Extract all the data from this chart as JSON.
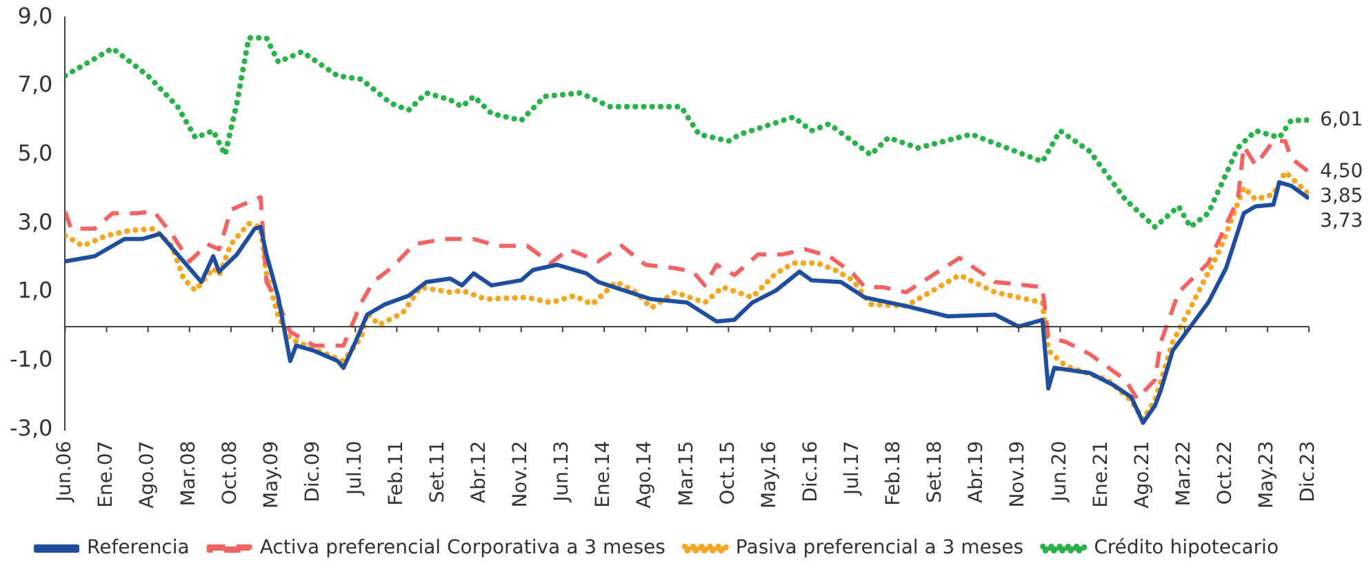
{
  "chart_data": {
    "type": "line",
    "legend": "bottom",
    "xlim": [
      "2006-06",
      "2023-12"
    ],
    "xticks": [
      {
        "value": "2006-06",
        "label": "Jun.06"
      },
      {
        "value": "2007-01",
        "label": "Ene.07"
      },
      {
        "value": "2007-08",
        "label": "Ago.07"
      },
      {
        "value": "2008-03",
        "label": "Mar.08"
      },
      {
        "value": "2008-10",
        "label": "Oct.08"
      },
      {
        "value": "2009-05",
        "label": "May.09"
      },
      {
        "value": "2009-12",
        "label": "Dic.09"
      },
      {
        "value": "2010-07",
        "label": "Jul.10"
      },
      {
        "value": "2011-02",
        "label": "Feb.11"
      },
      {
        "value": "2011-09",
        "label": "Set.11"
      },
      {
        "value": "2012-04",
        "label": "Abr.12"
      },
      {
        "value": "2012-11",
        "label": "Nov.12"
      },
      {
        "value": "2013-06",
        "label": "Jun.13"
      },
      {
        "value": "2014-01",
        "label": "Ene.14"
      },
      {
        "value": "2014-08",
        "label": "Ago.14"
      },
      {
        "value": "2015-03",
        "label": "Mar.15"
      },
      {
        "value": "2015-10",
        "label": "Oct.15"
      },
      {
        "value": "2016-05",
        "label": "May.16"
      },
      {
        "value": "2016-12",
        "label": "Dic.16"
      },
      {
        "value": "2017-07",
        "label": "Jul.17"
      },
      {
        "value": "2018-02",
        "label": "Feb.18"
      },
      {
        "value": "2018-09",
        "label": "Set.18"
      },
      {
        "value": "2019-04",
        "label": "Abr.19"
      },
      {
        "value": "2019-11",
        "label": "Nov.19"
      },
      {
        "value": "2020-06",
        "label": "Jun.20"
      },
      {
        "value": "2021-01",
        "label": "Ene.21"
      },
      {
        "value": "2021-08",
        "label": "Ago.21"
      },
      {
        "value": "2022-03",
        "label": "Mar.22"
      },
      {
        "value": "2022-10",
        "label": "Oct.22"
      },
      {
        "value": "2023-05",
        "label": "May.23"
      },
      {
        "value": "2023-12",
        "label": "Dic.23"
      }
    ],
    "ylim": [
      -3,
      9
    ],
    "yticks": [
      {
        "value": -3,
        "label": "-3,0"
      },
      {
        "value": -1,
        "label": "-1,0"
      },
      {
        "value": 1,
        "label": "1,0"
      },
      {
        "value": 3,
        "label": "3,0"
      },
      {
        "value": 5,
        "label": "5,0"
      },
      {
        "value": 7,
        "label": "7,0"
      },
      {
        "value": 9,
        "label": "9,0"
      }
    ],
    "ref_lines": [
      {
        "axis": "y",
        "value": 0,
        "color": "#404040"
      }
    ],
    "annotations": [
      {
        "text": "6,01",
        "x": "2023-12",
        "y": 6.01
      },
      {
        "text": "4,50",
        "x": "2023-12",
        "y": 4.5
      },
      {
        "text": "3,85",
        "x": "2023-12",
        "y": 3.85
      },
      {
        "text": "3,73",
        "x": "2023-12",
        "y": 3.73
      }
    ],
    "series": [
      {
        "name": "Referencia",
        "color": "#1f4e9c",
        "line_style": "solid",
        "x": [
          "2006-06",
          "2006-11",
          "2007-04",
          "2007-07",
          "2007-10",
          "2008-01",
          "2008-04",
          "2008-05",
          "2008-07",
          "2008-08",
          "2008-11",
          "2009-02",
          "2009-03",
          "2009-04",
          "2009-06",
          "2009-08",
          "2009-09",
          "2009-12",
          "2010-04",
          "2010-05",
          "2010-07",
          "2010-09",
          "2010-12",
          "2011-04",
          "2011-07",
          "2011-11",
          "2012-01",
          "2012-03",
          "2012-06",
          "2012-11",
          "2013-01",
          "2013-05",
          "2013-10",
          "2013-12",
          "2014-08",
          "2014-09",
          "2015-03",
          "2015-08",
          "2015-11",
          "2016-02",
          "2016-06",
          "2016-10",
          "2016-12",
          "2017-05",
          "2017-09",
          "2018-04",
          "2018-11",
          "2019-07",
          "2019-11",
          "2020-03",
          "2020-04",
          "2020-05",
          "2020-11",
          "2021-03",
          "2021-06",
          "2021-08",
          "2021-10",
          "2021-11",
          "2022-01",
          "2022-04",
          "2022-07",
          "2022-10",
          "2023-01",
          "2023-03",
          "2023-06",
          "2023-07",
          "2023-09",
          "2023-12"
        ],
        "values": [
          1.9,
          2.05,
          2.55,
          2.55,
          2.7,
          2.1,
          1.5,
          1.3,
          2.05,
          1.6,
          2.1,
          2.85,
          2.9,
          2.1,
          0.85,
          -1.0,
          -0.55,
          -0.7,
          -1.0,
          -1.2,
          -0.45,
          0.35,
          0.65,
          0.9,
          1.3,
          1.4,
          1.2,
          1.55,
          1.2,
          1.35,
          1.65,
          1.8,
          1.55,
          1.3,
          0.85,
          0.8,
          0.7,
          0.15,
          0.2,
          0.7,
          1.05,
          1.6,
          1.35,
          1.3,
          0.85,
          0.6,
          0.3,
          0.35,
          0,
          0.2,
          -1.8,
          -1.2,
          -1.35,
          -1.7,
          -2.05,
          -2.8,
          -2.3,
          -1.85,
          -0.7,
          0,
          0.7,
          1.7,
          3.3,
          3.5,
          3.55,
          4.2,
          4.1,
          3.73
        ]
      },
      {
        "name": "Activa preferencial Corporativa a 3 meses",
        "color": "#f06464",
        "line_style": "dashed",
        "x": [
          "2006-06",
          "2006-07",
          "2006-11",
          "2007-02",
          "2007-06",
          "2007-09",
          "2007-12",
          "2008-03",
          "2008-06",
          "2008-08",
          "2008-10",
          "2009-02",
          "2009-03",
          "2009-04",
          "2009-06",
          "2009-08",
          "2009-12",
          "2010-05",
          "2010-08",
          "2010-10",
          "2011-01",
          "2011-05",
          "2011-10",
          "2012-03",
          "2012-07",
          "2012-12",
          "2013-04",
          "2013-07",
          "2013-12",
          "2014-04",
          "2014-08",
          "2015-01",
          "2015-04",
          "2015-06",
          "2015-08",
          "2015-11",
          "2016-03",
          "2016-07",
          "2016-11",
          "2017-03",
          "2017-07",
          "2017-09",
          "2017-12",
          "2018-04",
          "2019-01",
          "2019-07",
          "2020-03",
          "2020-04",
          "2020-07",
          "2020-11",
          "2021-05",
          "2021-07",
          "2021-10",
          "2021-11",
          "2022-02",
          "2022-07",
          "2022-12",
          "2023-01",
          "2023-03",
          "2023-06",
          "2023-08",
          "2023-09",
          "2023-12"
        ],
        "values": [
          3.35,
          2.85,
          2.85,
          3.3,
          3.3,
          3.35,
          2.7,
          1.9,
          2.4,
          2.25,
          3.4,
          3.7,
          3.77,
          1.3,
          0.7,
          -0.15,
          -0.55,
          -0.55,
          0.7,
          1.3,
          1.7,
          2.4,
          2.55,
          2.55,
          2.35,
          2.35,
          1.85,
          2.25,
          1.9,
          2.35,
          1.8,
          1.7,
          1.6,
          1.2,
          1.8,
          1.5,
          2.1,
          2.1,
          2.25,
          2.05,
          1.55,
          1.15,
          1.15,
          1.0,
          2.0,
          1.3,
          1.15,
          -0.3,
          -0.45,
          -0.8,
          -1.55,
          -2.1,
          -1.55,
          -0.45,
          1.0,
          1.85,
          3.7,
          5.25,
          4.7,
          5.4,
          5.4,
          4.9,
          4.5
        ]
      },
      {
        "name": "Pasiva preferencial a 3 meses",
        "color": "#f5a623",
        "line_style": "dotted",
        "x": [
          "2006-06",
          "2006-09",
          "2007-01",
          "2007-05",
          "2007-09",
          "2007-12",
          "2008-02",
          "2008-04",
          "2008-07",
          "2008-08",
          "2008-10",
          "2009-01",
          "2009-03",
          "2009-04",
          "2009-06",
          "2009-08",
          "2009-12",
          "2010-05",
          "2010-08",
          "2010-09",
          "2010-11",
          "2011-03",
          "2011-06",
          "2011-11",
          "2012-01",
          "2012-05",
          "2012-12",
          "2013-04",
          "2013-08",
          "2013-11",
          "2014-03",
          "2014-06",
          "2014-09",
          "2015-01",
          "2015-06",
          "2015-09",
          "2016-02",
          "2016-06",
          "2016-09",
          "2017-01",
          "2017-04",
          "2017-07",
          "2017-10",
          "2018-04",
          "2019-01",
          "2019-07",
          "2020-03",
          "2020-04",
          "2020-07",
          "2021-02",
          "2021-06",
          "2021-08",
          "2021-10",
          "2022-01",
          "2022-04",
          "2022-09",
          "2023-01",
          "2023-03",
          "2023-06",
          "2023-08",
          "2023-12"
        ],
        "values": [
          2.65,
          2.35,
          2.65,
          2.8,
          2.85,
          2.35,
          1.4,
          1.05,
          1.7,
          1.5,
          2.4,
          3.0,
          2.9,
          1.55,
          0.3,
          -0.35,
          -0.65,
          -1.0,
          -0.3,
          0.4,
          0.05,
          0.4,
          1.15,
          1.0,
          1.05,
          0.8,
          0.85,
          0.7,
          0.9,
          0.65,
          1.3,
          1.05,
          0.55,
          1.0,
          0.7,
          1.15,
          0.85,
          1.55,
          1.85,
          1.85,
          1.65,
          1.35,
          0.65,
          0.6,
          1.5,
          1.0,
          0.7,
          -0.7,
          -1.15,
          -1.55,
          -2.15,
          -2.7,
          -2.15,
          -0.45,
          0.55,
          2.25,
          4.05,
          3.7,
          3.85,
          4.5,
          3.85
        ]
      },
      {
        "name": "Crédito hipotecario",
        "color": "#2ab24a",
        "line_style": "dotted",
        "x": [
          "2006-06",
          "2006-10",
          "2007-02",
          "2007-08",
          "2008-01",
          "2008-04",
          "2008-07",
          "2008-09",
          "2008-11",
          "2009-01",
          "2009-04",
          "2009-06",
          "2009-10",
          "2010-04",
          "2010-08",
          "2011-01",
          "2011-04",
          "2011-07",
          "2011-11",
          "2012-01",
          "2012-03",
          "2012-06",
          "2012-11",
          "2013-03",
          "2013-09",
          "2014-02",
          "2015-02",
          "2015-05",
          "2015-10",
          "2015-12",
          "2016-09",
          "2016-12",
          "2017-03",
          "2017-10",
          "2018-01",
          "2018-06",
          "2019-03",
          "2020-03",
          "2020-06",
          "2020-11",
          "2021-05",
          "2021-10",
          "2022-02",
          "2022-04",
          "2022-07",
          "2022-12",
          "2023-03",
          "2023-07",
          "2023-09",
          "2023-12"
        ],
        "values": [
          7.3,
          7.7,
          8.1,
          7.3,
          6.4,
          5.5,
          5.7,
          5.0,
          6.5,
          8.4,
          8.4,
          7.7,
          8.0,
          7.3,
          7.2,
          6.5,
          6.3,
          6.8,
          6.6,
          6.4,
          6.7,
          6.2,
          6.0,
          6.7,
          6.8,
          6.4,
          6.4,
          5.6,
          5.4,
          5.6,
          6.1,
          5.7,
          5.9,
          5.0,
          5.5,
          5.2,
          5.6,
          4.8,
          5.7,
          5.1,
          3.7,
          2.9,
          3.5,
          2.9,
          3.3,
          5.2,
          5.7,
          5.5,
          6.0,
          6.01
        ]
      }
    ]
  }
}
